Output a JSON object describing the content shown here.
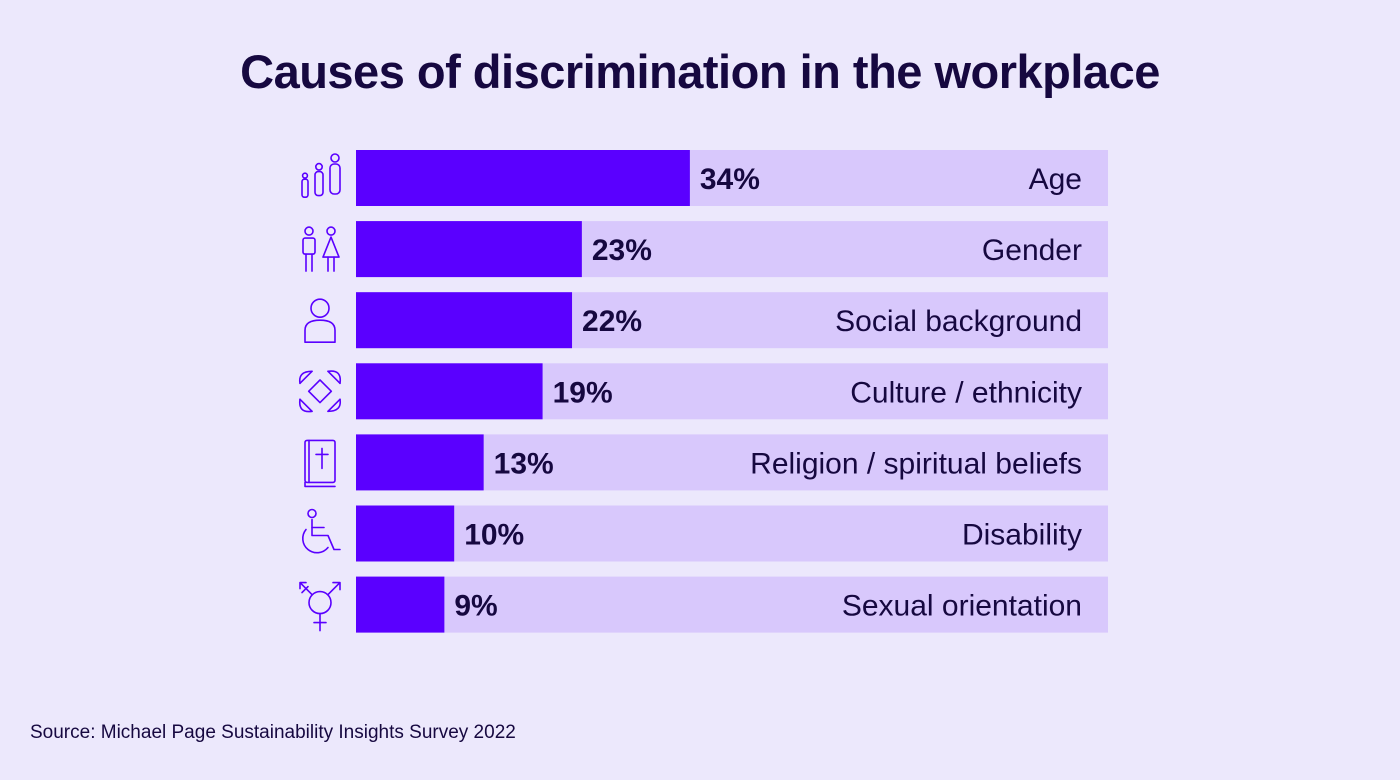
{
  "title": "Causes of discrimination in the workplace",
  "source": "Source: Michael Page Sustainability Insights Survey 2022",
  "colors": {
    "background": "#ece8fc",
    "bar": "#5a00ff",
    "track": "#d8c8fc",
    "text": "#160840",
    "icon": "#5a00ff"
  },
  "chart_data": {
    "type": "bar",
    "orientation": "horizontal",
    "categories": [
      "Age",
      "Gender",
      "Social background",
      "Culture / ethnicity",
      "Religion / spiritual beliefs",
      "Disability",
      "Sexual orientation"
    ],
    "values": [
      34,
      23,
      22,
      19,
      13,
      10,
      9
    ],
    "value_labels": [
      "34%",
      "23%",
      "22%",
      "19%",
      "13%",
      "10%",
      "9%"
    ],
    "icons": [
      "age-group-icon",
      "gender-icon",
      "person-icon",
      "joined-hands-icon",
      "bible-icon",
      "wheelchair-icon",
      "transgender-symbol-icon"
    ],
    "xlim": [
      0,
      100
    ],
    "unit": "%",
    "grid": false,
    "legend": "none"
  }
}
